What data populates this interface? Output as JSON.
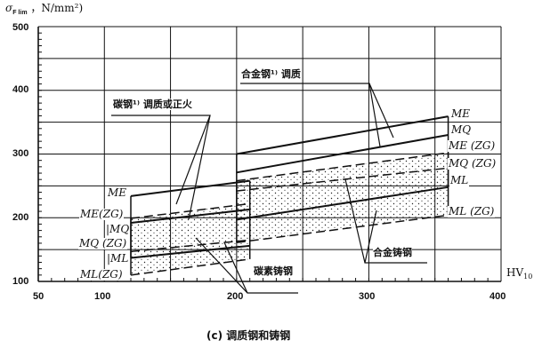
{
  "chart_data": {
    "type": "line",
    "title": "",
    "caption": "(c) 调质钢和铸钢",
    "ylabel": {
      "symbol": "σ",
      "sub": "F lim",
      "unit": "，N/mm²)"
    },
    "xlabel": {
      "main": "HV",
      "sub": "10"
    },
    "xlim": [
      50,
      400
    ],
    "ylim": [
      100,
      500
    ],
    "x_ticks": [
      "50",
      "100",
      "200",
      "300",
      "400"
    ],
    "y_ticks": [
      "100",
      "200",
      "300",
      "400",
      "500"
    ],
    "grid": true,
    "groups": [
      {
        "annotation": "碳钢¹⁾ 调质或正火",
        "series": [
          {
            "name": "ME",
            "style": "solid",
            "x": [
              120,
              210
            ],
            "y": [
              234,
              258
            ]
          },
          {
            "name": "MQ",
            "style": "solid",
            "x": [
              120,
              210
            ],
            "y": [
              192,
              213
            ]
          },
          {
            "name": "ML",
            "style": "solid",
            "x": [
              120,
              210
            ],
            "y": [
              137,
              156
            ]
          }
        ]
      },
      {
        "annotation": "碳素铸钢",
        "series": [
          {
            "name": "ME(ZG)",
            "style": "dashed",
            "x": [
              120,
              210
            ],
            "y": [
              199,
              222
            ]
          },
          {
            "name": "MQ(ZG)",
            "style": "dashed",
            "x": [
              120,
              210
            ],
            "y": [
              147,
              165
            ]
          },
          {
            "name": "ML(ZG)",
            "style": "dashed",
            "x": [
              120,
              210
            ],
            "y": [
              110,
              135
            ]
          }
        ]
      },
      {
        "annotation": "合金钢¹⁾ 调质",
        "series": [
          {
            "name": "ME",
            "style": "solid",
            "x": [
              200,
              360
            ],
            "y": [
              300,
              359
            ]
          },
          {
            "name": "MQ",
            "style": "solid",
            "x": [
              200,
              360
            ],
            "y": [
              271,
              330
            ]
          },
          {
            "name": "ML",
            "style": "solid",
            "x": [
              200,
              360
            ],
            "y": [
              197,
              248
            ]
          }
        ]
      },
      {
        "annotation": "合金铸钢",
        "series": [
          {
            "name": "ME(ZG)",
            "style": "dashed",
            "x": [
              200,
              360
            ],
            "y": [
              258,
              302
            ]
          },
          {
            "name": "MQ(ZG)",
            "style": "dashed",
            "x": [
              200,
              360
            ],
            "y": [
              242,
              278
            ]
          },
          {
            "name": "ML(ZG)",
            "style": "dashed",
            "x": [
              200,
              360
            ],
            "y": [
              161,
              204
            ]
          }
        ]
      }
    ],
    "left_labels": [
      "ME",
      "ME(ZG)",
      "|MQ",
      "MQ (ZG)",
      "|ML",
      "ML(ZG)"
    ],
    "right_labels": [
      "ME",
      "MQ",
      "ME (ZG)",
      "MQ (ZG)",
      "ML",
      "ML (ZG)"
    ]
  }
}
